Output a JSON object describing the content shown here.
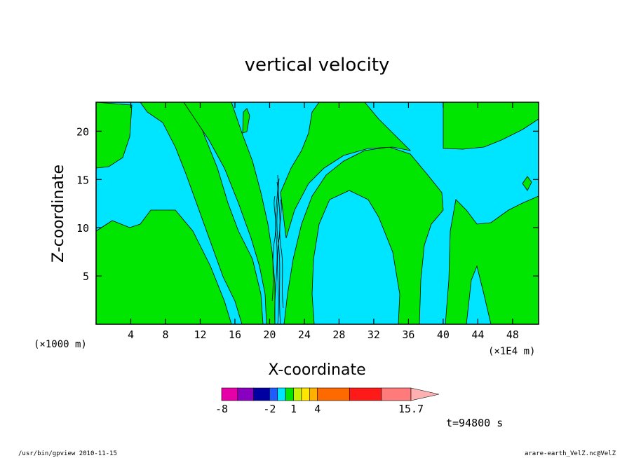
{
  "chart_data": {
    "type": "contour",
    "title": "vertical velocity",
    "xlabel": "X-coordinate",
    "ylabel": "Z-coordinate",
    "x_unit_left": "(×1000 m)",
    "x_unit_right": "(×1E4 m)",
    "xlim": [
      0,
      51
    ],
    "ylim": [
      0,
      23
    ],
    "xticks": [
      4,
      8,
      12,
      16,
      20,
      24,
      28,
      32,
      36,
      40,
      44,
      48
    ],
    "yticks": [
      5,
      10,
      15,
      20
    ],
    "colors": {
      "cyan": "#00e5ff",
      "green": "#00e600"
    },
    "colorbar": {
      "levels": [
        -8,
        -6,
        -4,
        -2,
        -1,
        0,
        1,
        2,
        3,
        4,
        8,
        12,
        15.7
      ],
      "labels": [
        "-8",
        "-2",
        "1",
        "4",
        "15.7"
      ],
      "colors": [
        "#e600a8",
        "#8a00c0",
        "#0000a0",
        "#1f5cff",
        "#00e5ff",
        "#00e600",
        "#c8f000",
        "#ffe600",
        "#ffb000",
        "#ff6a00",
        "#ff1a1a",
        "#ff7a7a",
        "#ffb0b0"
      ]
    },
    "annotation": "t=94800 s"
  },
  "footer": {
    "left": "/usr/bin/gpview   2010-11-15",
    "right": "arare-earth_VelZ.nc@VelZ"
  }
}
